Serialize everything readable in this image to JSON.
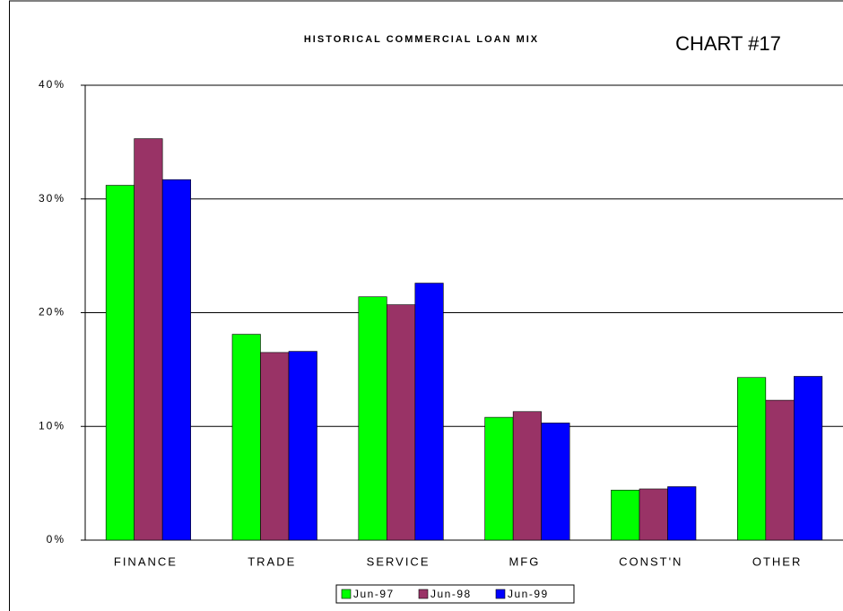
{
  "chart_data": {
    "type": "bar",
    "title": "HISTORICAL COMMERCIAL LOAN MIX",
    "annotation": "CHART #17",
    "categories": [
      "FINANCE",
      "TRADE",
      "SERVICE",
      "MFG",
      "CONST'N",
      "OTHER"
    ],
    "series": [
      {
        "name": "Jun-97",
        "color": "#00ff00",
        "values": [
          31.2,
          18.1,
          21.4,
          10.8,
          4.4,
          14.3
        ]
      },
      {
        "name": "Jun-98",
        "color": "#993366",
        "values": [
          35.3,
          16.5,
          20.7,
          11.3,
          4.5,
          12.3
        ]
      },
      {
        "name": "Jun-99",
        "color": "#0000ff",
        "values": [
          31.7,
          16.6,
          22.6,
          10.3,
          4.7,
          14.4
        ]
      }
    ],
    "ylim": [
      0,
      40
    ],
    "yticks": [
      {
        "value": 0,
        "label": "0%"
      },
      {
        "value": 10,
        "label": "10%"
      },
      {
        "value": 20,
        "label": "20%"
      },
      {
        "value": 30,
        "label": "30%"
      },
      {
        "value": 40,
        "label": "40%"
      }
    ],
    "grid": true,
    "legend": "bottom"
  }
}
